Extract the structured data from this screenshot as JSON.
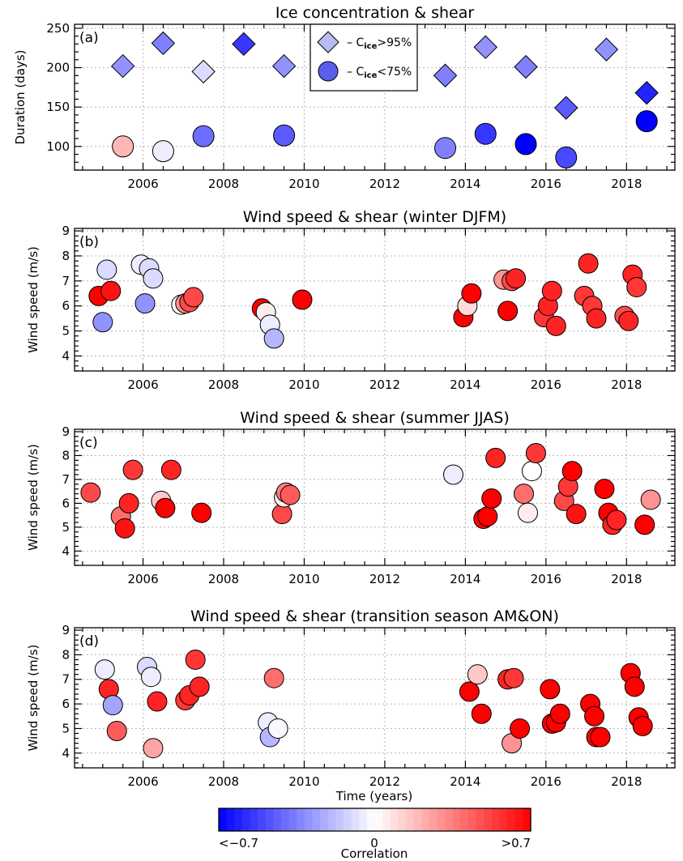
{
  "chart_data": [
    {
      "type": "scatter",
      "panel": "(a)",
      "title": "Ice concentration & shear",
      "xlabel": "",
      "ylabel": "Duration (days)",
      "xlim": [
        2004.3,
        2019.2
      ],
      "ylim": [
        70,
        255
      ],
      "yticks": [
        100,
        150,
        200,
        250
      ],
      "xticks": [
        2006,
        2008,
        2010,
        2012,
        2014,
        2016,
        2018
      ],
      "grid": true,
      "legend": {
        "placement": "top-center",
        "entries": [
          {
            "label": "– C",
            "sub": "ice",
            "tail": ">95%",
            "marker": "diamond",
            "color": "#b8bcf4"
          },
          {
            "label": "– C",
            "sub": "ice",
            "tail": "<75%",
            "marker": "circle",
            "color": "#5a5eea"
          }
        ]
      },
      "series": [
        {
          "name": "C_ice>95%",
          "marker": "diamond",
          "points": [
            {
              "x": 2005.5,
              "y": 202,
              "c": -0.3
            },
            {
              "x": 2006.5,
              "y": 231,
              "c": -0.35
            },
            {
              "x": 2007.5,
              "y": 195,
              "c": -0.1
            },
            {
              "x": 2008.5,
              "y": 230,
              "c": -0.55
            },
            {
              "x": 2009.5,
              "y": 202,
              "c": -0.3
            },
            {
              "x": 2013.5,
              "y": 190,
              "c": -0.35
            },
            {
              "x": 2014.5,
              "y": 226,
              "c": -0.3
            },
            {
              "x": 2015.5,
              "y": 201,
              "c": -0.35
            },
            {
              "x": 2016.5,
              "y": 149,
              "c": -0.45
            },
            {
              "x": 2017.5,
              "y": 223,
              "c": -0.3
            },
            {
              "x": 2018.5,
              "y": 168,
              "c": -0.6
            }
          ]
        },
        {
          "name": "C_ice<75%",
          "marker": "circle",
          "points": [
            {
              "x": 2005.5,
              "y": 100,
              "c": 0.2
            },
            {
              "x": 2006.5,
              "y": 94,
              "c": -0.05
            },
            {
              "x": 2007.5,
              "y": 113,
              "c": -0.4
            },
            {
              "x": 2009.5,
              "y": 114,
              "c": -0.45
            },
            {
              "x": 2013.5,
              "y": 98,
              "c": -0.35
            },
            {
              "x": 2014.5,
              "y": 116,
              "c": -0.55
            },
            {
              "x": 2015.5,
              "y": 103,
              "c": -0.7
            },
            {
              "x": 2016.5,
              "y": 86,
              "c": -0.5
            },
            {
              "x": 2018.5,
              "y": 132,
              "c": -0.75
            }
          ]
        }
      ]
    },
    {
      "type": "scatter",
      "panel": "(b)",
      "title": "Wind speed & shear (winter DJFM)",
      "xlabel": "",
      "ylabel": "Wind speed (m/s)",
      "xlim": [
        2004.3,
        2019.2
      ],
      "ylim": [
        3.4,
        9.1
      ],
      "yticks": [
        4,
        5,
        6,
        7,
        8,
        9
      ],
      "xticks": [
        2006,
        2008,
        2010,
        2012,
        2014,
        2016,
        2018
      ],
      "grid": true,
      "series": [
        {
          "name": "",
          "marker": "circle",
          "points": [
            {
              "x": 2004.9,
              "y": 6.4,
              "c": 0.75
            },
            {
              "x": 2005.0,
              "y": 5.35,
              "c": -0.3
            },
            {
              "x": 2005.1,
              "y": 7.45,
              "c": -0.1
            },
            {
              "x": 2005.2,
              "y": 6.6,
              "c": 0.65
            },
            {
              "x": 2005.95,
              "y": 7.65,
              "c": -0.05
            },
            {
              "x": 2006.05,
              "y": 6.1,
              "c": -0.3
            },
            {
              "x": 2006.15,
              "y": 7.5,
              "c": -0.1
            },
            {
              "x": 2006.25,
              "y": 7.1,
              "c": -0.1
            },
            {
              "x": 2006.95,
              "y": 6.05,
              "c": 0.02
            },
            {
              "x": 2007.05,
              "y": 6.1,
              "c": 0.3
            },
            {
              "x": 2007.15,
              "y": 6.15,
              "c": 0.5
            },
            {
              "x": 2007.25,
              "y": 6.35,
              "c": 0.5
            },
            {
              "x": 2008.95,
              "y": 5.9,
              "c": 0.8
            },
            {
              "x": 2009.05,
              "y": 5.75,
              "c": 0.05
            },
            {
              "x": 2009.15,
              "y": 5.25,
              "c": -0.05
            },
            {
              "x": 2009.25,
              "y": 4.7,
              "c": -0.2
            },
            {
              "x": 2009.95,
              "y": 6.25,
              "c": 0.75
            },
            {
              "x": 2013.95,
              "y": 5.55,
              "c": 0.75
            },
            {
              "x": 2014.05,
              "y": 6.0,
              "c": 0.1
            },
            {
              "x": 2014.15,
              "y": 6.5,
              "c": 0.8
            },
            {
              "x": 2014.95,
              "y": 7.05,
              "c": 0.3
            },
            {
              "x": 2015.05,
              "y": 5.8,
              "c": 0.75
            },
            {
              "x": 2015.15,
              "y": 7.0,
              "c": 0.5
            },
            {
              "x": 2015.25,
              "y": 7.1,
              "c": 0.6
            },
            {
              "x": 2015.95,
              "y": 5.55,
              "c": 0.55
            },
            {
              "x": 2016.05,
              "y": 6.0,
              "c": 0.6
            },
            {
              "x": 2016.15,
              "y": 6.6,
              "c": 0.6
            },
            {
              "x": 2016.25,
              "y": 5.2,
              "c": 0.6
            },
            {
              "x": 2016.95,
              "y": 6.4,
              "c": 0.55
            },
            {
              "x": 2017.05,
              "y": 7.7,
              "c": 0.6
            },
            {
              "x": 2017.15,
              "y": 6.0,
              "c": 0.55
            },
            {
              "x": 2017.25,
              "y": 5.5,
              "c": 0.6
            },
            {
              "x": 2017.95,
              "y": 5.6,
              "c": 0.5
            },
            {
              "x": 2018.05,
              "y": 5.4,
              "c": 0.6
            },
            {
              "x": 2018.15,
              "y": 7.25,
              "c": 0.6
            },
            {
              "x": 2018.25,
              "y": 6.75,
              "c": 0.55
            }
          ]
        }
      ]
    },
    {
      "type": "scatter",
      "panel": "(c)",
      "title": "Wind speed & shear (summer JJAS)",
      "xlabel": "",
      "ylabel": "Wind speed (m/s)",
      "xlim": [
        2004.3,
        2019.2
      ],
      "ylim": [
        3.4,
        9.1
      ],
      "yticks": [
        4,
        5,
        6,
        7,
        8,
        9
      ],
      "xticks": [
        2006,
        2008,
        2010,
        2012,
        2014,
        2016,
        2018
      ],
      "grid": true,
      "series": [
        {
          "name": "",
          "marker": "circle",
          "points": [
            {
              "x": 2004.7,
              "y": 6.45,
              "c": 0.5
            },
            {
              "x": 2005.45,
              "y": 5.45,
              "c": 0.4
            },
            {
              "x": 2005.55,
              "y": 4.95,
              "c": 0.65
            },
            {
              "x": 2005.65,
              "y": 6.0,
              "c": 0.6
            },
            {
              "x": 2005.75,
              "y": 7.4,
              "c": 0.55
            },
            {
              "x": 2006.45,
              "y": 6.1,
              "c": 0.15
            },
            {
              "x": 2006.55,
              "y": 5.8,
              "c": 0.7
            },
            {
              "x": 2006.7,
              "y": 7.4,
              "c": 0.6
            },
            {
              "x": 2007.45,
              "y": 5.6,
              "c": 0.75
            },
            {
              "x": 2009.45,
              "y": 5.55,
              "c": 0.5
            },
            {
              "x": 2009.5,
              "y": 6.25,
              "c": 0.05
            },
            {
              "x": 2009.55,
              "y": 6.45,
              "c": 0.35
            },
            {
              "x": 2009.65,
              "y": 6.35,
              "c": 0.45
            },
            {
              "x": 2013.7,
              "y": 7.2,
              "c": -0.05
            },
            {
              "x": 2014.45,
              "y": 5.35,
              "c": 0.75
            },
            {
              "x": 2014.55,
              "y": 5.45,
              "c": 0.75
            },
            {
              "x": 2014.65,
              "y": 6.2,
              "c": 0.75
            },
            {
              "x": 2014.75,
              "y": 7.9,
              "c": 0.6
            },
            {
              "x": 2015.45,
              "y": 6.4,
              "c": 0.4
            },
            {
              "x": 2015.55,
              "y": 5.6,
              "c": 0.05
            },
            {
              "x": 2015.65,
              "y": 7.35,
              "c": 0.0
            },
            {
              "x": 2015.75,
              "y": 8.1,
              "c": 0.55
            },
            {
              "x": 2016.45,
              "y": 6.1,
              "c": 0.5
            },
            {
              "x": 2016.55,
              "y": 6.7,
              "c": 0.55
            },
            {
              "x": 2016.65,
              "y": 7.35,
              "c": 0.75
            },
            {
              "x": 2016.75,
              "y": 5.55,
              "c": 0.65
            },
            {
              "x": 2017.45,
              "y": 6.6,
              "c": 0.7
            },
            {
              "x": 2017.55,
              "y": 5.6,
              "c": 0.7
            },
            {
              "x": 2017.65,
              "y": 5.1,
              "c": 0.6
            },
            {
              "x": 2017.75,
              "y": 5.3,
              "c": 0.6
            },
            {
              "x": 2018.45,
              "y": 5.1,
              "c": 0.7
            },
            {
              "x": 2018.6,
              "y": 6.15,
              "c": 0.3
            }
          ]
        }
      ]
    },
    {
      "type": "scatter",
      "panel": "(d)",
      "title": "Wind speed & shear (transition season AM&ON)",
      "xlabel": "Time (years)",
      "ylabel": "Wind speed (m/s)",
      "xlim": [
        2004.3,
        2019.2
      ],
      "ylim": [
        3.4,
        9.1
      ],
      "yticks": [
        4,
        5,
        6,
        7,
        8,
        9
      ],
      "xticks": [
        2006,
        2008,
        2010,
        2012,
        2014,
        2016,
        2018
      ],
      "grid": true,
      "series": [
        {
          "name": "",
          "marker": "circle",
          "points": [
            {
              "x": 2005.05,
              "y": 7.4,
              "c": -0.05
            },
            {
              "x": 2005.15,
              "y": 6.6,
              "c": 0.6
            },
            {
              "x": 2005.25,
              "y": 5.95,
              "c": -0.25
            },
            {
              "x": 2005.35,
              "y": 4.9,
              "c": 0.45
            },
            {
              "x": 2006.1,
              "y": 7.5,
              "c": -0.1
            },
            {
              "x": 2006.2,
              "y": 7.1,
              "c": -0.05
            },
            {
              "x": 2006.25,
              "y": 4.2,
              "c": 0.25
            },
            {
              "x": 2006.35,
              "y": 6.1,
              "c": 0.6
            },
            {
              "x": 2007.05,
              "y": 6.15,
              "c": 0.55
            },
            {
              "x": 2007.15,
              "y": 6.35,
              "c": 0.6
            },
            {
              "x": 2007.3,
              "y": 7.8,
              "c": 0.55
            },
            {
              "x": 2007.4,
              "y": 6.7,
              "c": 0.6
            },
            {
              "x": 2009.1,
              "y": 5.25,
              "c": -0.05
            },
            {
              "x": 2009.15,
              "y": 4.65,
              "c": -0.2
            },
            {
              "x": 2009.25,
              "y": 7.05,
              "c": 0.4
            },
            {
              "x": 2009.35,
              "y": 5.0,
              "c": -0.02
            },
            {
              "x": 2014.1,
              "y": 6.5,
              "c": 0.75
            },
            {
              "x": 2014.3,
              "y": 7.2,
              "c": 0.15
            },
            {
              "x": 2014.4,
              "y": 5.6,
              "c": 0.75
            },
            {
              "x": 2015.05,
              "y": 7.0,
              "c": 0.6
            },
            {
              "x": 2015.15,
              "y": 4.4,
              "c": 0.3
            },
            {
              "x": 2015.2,
              "y": 7.05,
              "c": 0.55
            },
            {
              "x": 2015.35,
              "y": 5.0,
              "c": 0.75
            },
            {
              "x": 2016.1,
              "y": 6.6,
              "c": 0.75
            },
            {
              "x": 2016.15,
              "y": 5.2,
              "c": 0.7
            },
            {
              "x": 2016.25,
              "y": 5.25,
              "c": 0.7
            },
            {
              "x": 2016.35,
              "y": 5.6,
              "c": 0.7
            },
            {
              "x": 2017.1,
              "y": 6.0,
              "c": 0.75
            },
            {
              "x": 2017.2,
              "y": 5.5,
              "c": 0.75
            },
            {
              "x": 2017.25,
              "y": 4.65,
              "c": 0.75
            },
            {
              "x": 2017.35,
              "y": 4.65,
              "c": 0.75
            },
            {
              "x": 2018.1,
              "y": 7.25,
              "c": 0.8
            },
            {
              "x": 2018.2,
              "y": 6.7,
              "c": 0.75
            },
            {
              "x": 2018.3,
              "y": 5.45,
              "c": 0.75
            },
            {
              "x": 2018.4,
              "y": 5.1,
              "c": 0.75
            }
          ]
        }
      ]
    }
  ],
  "colorbar": {
    "label": "Correlation",
    "min_label": "<−0.7",
    "mid_label": "0",
    "max_label": ">0.7",
    "range": [
      -0.7,
      0.7
    ],
    "steps": 40,
    "neg_color": "#0000ff",
    "mid_color": "#ffffff",
    "pos_color": "#ff0000"
  }
}
